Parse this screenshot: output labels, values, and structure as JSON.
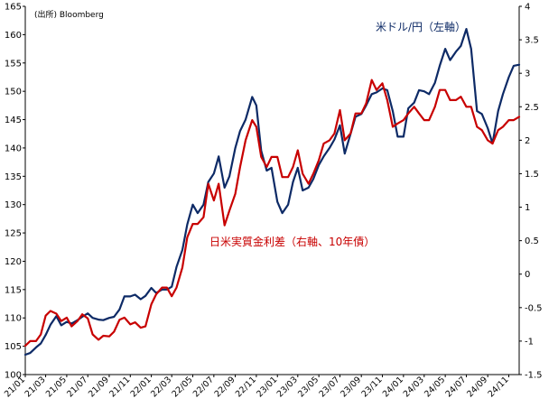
{
  "chart_data": {
    "type": "line",
    "source_label": "(出所) Bloomberg",
    "grid": false,
    "x_tick_labels": [
      "21/01",
      "21/03",
      "21/05",
      "21/07",
      "21/09",
      "21/11",
      "22/01",
      "22/03",
      "22/05",
      "22/07",
      "22/09",
      "22/11",
      "23/01",
      "23/03",
      "23/05",
      "23/07",
      "23/09",
      "23/11",
      "24/01",
      "24/03",
      "24/05",
      "24/07",
      "24/09",
      "24/11"
    ],
    "x_range": [
      "2021-01",
      "2024-12"
    ],
    "left_axis": {
      "range": [
        100,
        165
      ],
      "ticks": [
        "100",
        "105",
        "110",
        "115",
        "120",
        "125",
        "130",
        "135",
        "140",
        "145",
        "150",
        "155",
        "160",
        "165"
      ]
    },
    "right_axis": {
      "range": [
        -1.5,
        4
      ],
      "ticks": [
        "-1.5",
        "-1",
        "-0.5",
        "0",
        "0.5",
        "1",
        "1.5",
        "2",
        "2.5",
        "3",
        "3.5",
        "4"
      ]
    },
    "series": [
      {
        "name": "米ドル/円（左軸）",
        "axis": "left",
        "color": "#0d2a66",
        "points": [
          [
            "2021-01-01",
            103.5
          ],
          [
            "2021-01-15",
            103.8
          ],
          [
            "2021-02-01",
            104.8
          ],
          [
            "2021-02-15",
            105.5
          ],
          [
            "2021-03-01",
            107.0
          ],
          [
            "2021-03-15",
            108.8
          ],
          [
            "2021-04-01",
            110.3
          ],
          [
            "2021-04-15",
            108.7
          ],
          [
            "2021-05-01",
            109.3
          ],
          [
            "2021-05-15",
            109.0
          ],
          [
            "2021-06-01",
            109.6
          ],
          [
            "2021-06-15",
            110.2
          ],
          [
            "2021-07-01",
            110.8
          ],
          [
            "2021-07-15",
            110.0
          ],
          [
            "2021-08-01",
            109.7
          ],
          [
            "2021-08-15",
            109.6
          ],
          [
            "2021-09-01",
            110.0
          ],
          [
            "2021-09-15",
            110.2
          ],
          [
            "2021-10-01",
            111.5
          ],
          [
            "2021-10-15",
            113.8
          ],
          [
            "2021-11-01",
            113.8
          ],
          [
            "2021-11-15",
            114.1
          ],
          [
            "2021-12-01",
            113.3
          ],
          [
            "2021-12-15",
            113.9
          ],
          [
            "2022-01-01",
            115.3
          ],
          [
            "2022-01-15",
            114.4
          ],
          [
            "2022-02-01",
            115.0
          ],
          [
            "2022-02-15",
            115.0
          ],
          [
            "2022-03-01",
            115.5
          ],
          [
            "2022-03-15",
            119.0
          ],
          [
            "2022-04-01",
            122.0
          ],
          [
            "2022-04-15",
            126.5
          ],
          [
            "2022-05-01",
            130.0
          ],
          [
            "2022-05-15",
            128.5
          ],
          [
            "2022-06-01",
            130.0
          ],
          [
            "2022-06-15",
            134.0
          ],
          [
            "2022-07-01",
            135.5
          ],
          [
            "2022-07-15",
            138.5
          ],
          [
            "2022-08-01",
            133.0
          ],
          [
            "2022-08-15",
            135.0
          ],
          [
            "2022-09-01",
            140.0
          ],
          [
            "2022-09-15",
            143.0
          ],
          [
            "2022-10-01",
            145.0
          ],
          [
            "2022-10-20",
            149.0
          ],
          [
            "2022-11-01",
            147.5
          ],
          [
            "2022-11-15",
            139.5
          ],
          [
            "2022-12-01",
            136.0
          ],
          [
            "2022-12-15",
            136.5
          ],
          [
            "2023-01-01",
            130.5
          ],
          [
            "2023-01-15",
            128.5
          ],
          [
            "2023-02-01",
            130.0
          ],
          [
            "2023-02-15",
            134.0
          ],
          [
            "2023-03-01",
            136.5
          ],
          [
            "2023-03-15",
            132.5
          ],
          [
            "2023-04-01",
            133.0
          ],
          [
            "2023-04-15",
            134.5
          ],
          [
            "2023-05-01",
            137.0
          ],
          [
            "2023-05-15",
            138.5
          ],
          [
            "2023-06-01",
            140.0
          ],
          [
            "2023-06-15",
            141.5
          ],
          [
            "2023-07-01",
            144.0
          ],
          [
            "2023-07-15",
            139.0
          ],
          [
            "2023-08-01",
            142.5
          ],
          [
            "2023-08-15",
            145.5
          ],
          [
            "2023-09-01",
            146.0
          ],
          [
            "2023-09-15",
            147.5
          ],
          [
            "2023-10-01",
            149.5
          ],
          [
            "2023-10-15",
            149.8
          ],
          [
            "2023-11-01",
            150.5
          ],
          [
            "2023-11-15",
            150.2
          ],
          [
            "2023-12-01",
            146.5
          ],
          [
            "2023-12-15",
            142.0
          ],
          [
            "2024-01-01",
            142.0
          ],
          [
            "2024-01-15",
            147.0
          ],
          [
            "2024-02-01",
            148.0
          ],
          [
            "2024-02-15",
            150.2
          ],
          [
            "2024-03-01",
            150.0
          ],
          [
            "2024-03-15",
            149.5
          ],
          [
            "2024-04-01",
            151.5
          ],
          [
            "2024-04-15",
            154.5
          ],
          [
            "2024-05-01",
            157.5
          ],
          [
            "2024-05-15",
            155.5
          ],
          [
            "2024-06-01",
            157.0
          ],
          [
            "2024-06-15",
            158.0
          ],
          [
            "2024-07-01",
            161.0
          ],
          [
            "2024-07-15",
            157.5
          ],
          [
            "2024-08-01",
            146.5
          ],
          [
            "2024-08-15",
            146.0
          ],
          [
            "2024-09-01",
            143.5
          ],
          [
            "2024-09-15",
            140.8
          ],
          [
            "2024-10-01",
            146.5
          ],
          [
            "2024-10-15",
            149.5
          ],
          [
            "2024-11-01",
            152.5
          ],
          [
            "2024-11-15",
            154.5
          ],
          [
            "2024-12-01",
            154.7
          ]
        ]
      },
      {
        "name": "日米実質金利差（右軸、10年債）",
        "axis": "right",
        "color": "#c80000",
        "points": [
          [
            "2021-01-01",
            -1.07
          ],
          [
            "2021-01-15",
            -1.0
          ],
          [
            "2021-02-01",
            -1.0
          ],
          [
            "2021-02-15",
            -0.9
          ],
          [
            "2021-03-01",
            -0.62
          ],
          [
            "2021-03-15",
            -0.55
          ],
          [
            "2021-04-01",
            -0.59
          ],
          [
            "2021-04-15",
            -0.7
          ],
          [
            "2021-05-01",
            -0.65
          ],
          [
            "2021-05-15",
            -0.78
          ],
          [
            "2021-06-01",
            -0.7
          ],
          [
            "2021-06-15",
            -0.6
          ],
          [
            "2021-07-01",
            -0.66
          ],
          [
            "2021-07-15",
            -0.9
          ],
          [
            "2021-08-01",
            -0.98
          ],
          [
            "2021-08-15",
            -0.92
          ],
          [
            "2021-09-01",
            -0.93
          ],
          [
            "2021-09-15",
            -0.86
          ],
          [
            "2021-10-01",
            -0.68
          ],
          [
            "2021-10-15",
            -0.65
          ],
          [
            "2021-11-01",
            -0.75
          ],
          [
            "2021-11-15",
            -0.72
          ],
          [
            "2021-12-01",
            -0.8
          ],
          [
            "2021-12-15",
            -0.78
          ],
          [
            "2022-01-01",
            -0.45
          ],
          [
            "2022-01-15",
            -0.3
          ],
          [
            "2022-02-01",
            -0.2
          ],
          [
            "2022-02-15",
            -0.2
          ],
          [
            "2022-03-01",
            -0.33
          ],
          [
            "2022-03-15",
            -0.2
          ],
          [
            "2022-04-01",
            0.1
          ],
          [
            "2022-04-15",
            0.55
          ],
          [
            "2022-05-01",
            0.75
          ],
          [
            "2022-05-15",
            0.75
          ],
          [
            "2022-06-01",
            0.85
          ],
          [
            "2022-06-15",
            1.35
          ],
          [
            "2022-07-01",
            1.1
          ],
          [
            "2022-07-15",
            1.35
          ],
          [
            "2022-08-01",
            0.73
          ],
          [
            "2022-08-15",
            0.95
          ],
          [
            "2022-09-01",
            1.2
          ],
          [
            "2022-09-15",
            1.6
          ],
          [
            "2022-10-01",
            2.0
          ],
          [
            "2022-10-20",
            2.3
          ],
          [
            "2022-11-01",
            2.2
          ],
          [
            "2022-11-15",
            1.75
          ],
          [
            "2022-12-01",
            1.6
          ],
          [
            "2022-12-15",
            1.75
          ],
          [
            "2023-01-01",
            1.75
          ],
          [
            "2023-01-15",
            1.45
          ],
          [
            "2023-02-01",
            1.45
          ],
          [
            "2023-02-15",
            1.6
          ],
          [
            "2023-03-01",
            1.85
          ],
          [
            "2023-03-15",
            1.5
          ],
          [
            "2023-04-01",
            1.35
          ],
          [
            "2023-04-15",
            1.5
          ],
          [
            "2023-05-01",
            1.7
          ],
          [
            "2023-05-15",
            1.95
          ],
          [
            "2023-06-01",
            2.0
          ],
          [
            "2023-06-15",
            2.1
          ],
          [
            "2023-07-01",
            2.45
          ],
          [
            "2023-07-15",
            2.0
          ],
          [
            "2023-08-01",
            2.1
          ],
          [
            "2023-08-15",
            2.4
          ],
          [
            "2023-09-01",
            2.4
          ],
          [
            "2023-09-15",
            2.55
          ],
          [
            "2023-10-01",
            2.9
          ],
          [
            "2023-10-15",
            2.75
          ],
          [
            "2023-11-01",
            2.85
          ],
          [
            "2023-11-15",
            2.6
          ],
          [
            "2023-12-01",
            2.2
          ],
          [
            "2023-12-15",
            2.25
          ],
          [
            "2024-01-01",
            2.3
          ],
          [
            "2024-01-15",
            2.4
          ],
          [
            "2024-02-01",
            2.5
          ],
          [
            "2024-02-15",
            2.4
          ],
          [
            "2024-03-01",
            2.3
          ],
          [
            "2024-03-15",
            2.3
          ],
          [
            "2024-04-01",
            2.5
          ],
          [
            "2024-04-15",
            2.75
          ],
          [
            "2024-05-01",
            2.75
          ],
          [
            "2024-05-15",
            2.6
          ],
          [
            "2024-06-01",
            2.6
          ],
          [
            "2024-06-15",
            2.65
          ],
          [
            "2024-07-01",
            2.5
          ],
          [
            "2024-07-15",
            2.5
          ],
          [
            "2024-08-01",
            2.2
          ],
          [
            "2024-08-15",
            2.15
          ],
          [
            "2024-09-01",
            2.0
          ],
          [
            "2024-09-15",
            1.95
          ],
          [
            "2024-10-01",
            2.15
          ],
          [
            "2024-10-15",
            2.2
          ],
          [
            "2024-11-01",
            2.3
          ],
          [
            "2024-11-15",
            2.3
          ],
          [
            "2024-12-01",
            2.35
          ]
        ]
      }
    ],
    "annotations": [
      {
        "text": "米ドル/円（左軸）",
        "series": "米ドル/円（左軸）",
        "color": "#0d2a66"
      },
      {
        "text": "日米実質金利差（右軸、10年債）",
        "series": "日米実質金利差（右軸、10年債）",
        "color": "#c80000"
      }
    ]
  }
}
